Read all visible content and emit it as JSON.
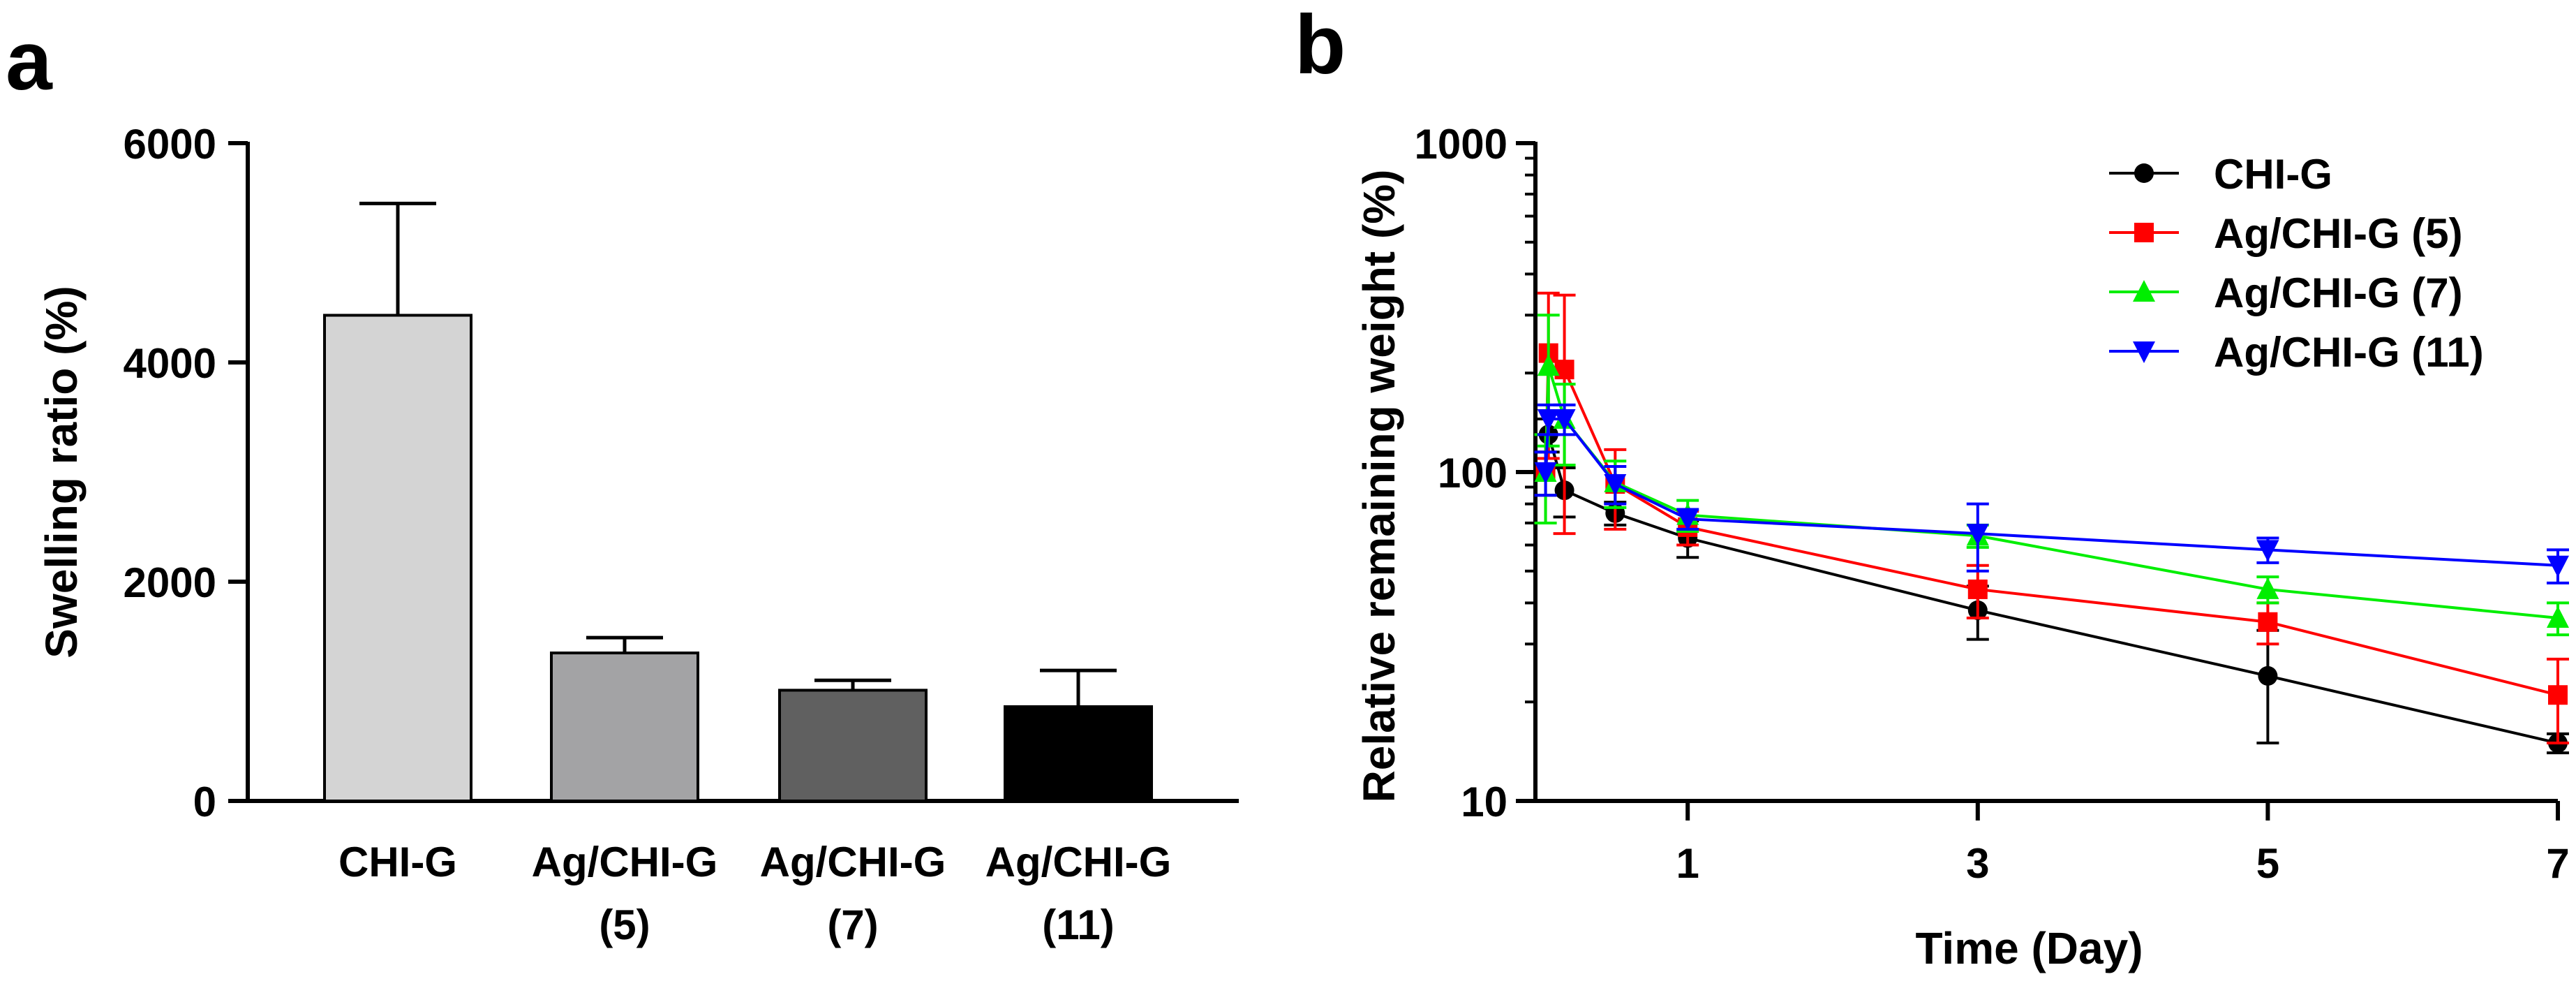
{
  "chart_data": [
    {
      "panel": "a",
      "type": "bar",
      "ylabel": "Swelling ratio (%)",
      "ylim": [
        0,
        6000
      ],
      "yticks": [
        0,
        2000,
        4000,
        6000
      ],
      "categories": [
        {
          "line1": "CHI-G",
          "line2": ""
        },
        {
          "line1": "Ag/CHI-G",
          "line2": "(5)"
        },
        {
          "line1": "Ag/CHI-G",
          "line2": "(7)"
        },
        {
          "line1": "Ag/CHI-G",
          "line2": "(11)"
        }
      ],
      "values": [
        4430,
        1350,
        1010,
        860
      ],
      "errors": [
        1020,
        140,
        90,
        330
      ],
      "colors": [
        "#d4d4d4",
        "#a3a3a5",
        "#606060",
        "#000000"
      ]
    },
    {
      "panel": "b",
      "type": "line",
      "xlabel": "Time (Day)",
      "ylabel": "Relative remaining weight (%)",
      "yscale": "log",
      "ylim": [
        10,
        1000
      ],
      "xlim": [
        -0.05,
        7
      ],
      "xticks": [
        1,
        3,
        5,
        7
      ],
      "yticks": [
        10,
        100,
        1000
      ],
      "legend_position": "top-right",
      "series": [
        {
          "name": "CHI-G",
          "color": "#000000",
          "marker": "circle",
          "x": [
            0.02,
            0.04,
            0.15,
            0.5,
            1,
            3,
            5,
            7
          ],
          "y": [
            100,
            130,
            88,
            75,
            63,
            38,
            24,
            15
          ],
          "err": [
            15,
            15,
            15,
            6,
            8,
            7,
            9,
            1
          ]
        },
        {
          "name": "Ag/CHI-G (5)",
          "color": "#ff0000",
          "marker": "square",
          "x": [
            0.02,
            0.04,
            0.15,
            0.5,
            1,
            3,
            5,
            7
          ],
          "y": [
            100,
            230,
            205,
            92,
            68,
            44,
            35,
            21
          ],
          "err": [
            30,
            120,
            140,
            25,
            8,
            8,
            5,
            6
          ]
        },
        {
          "name": "Ag/CHI-G (7)",
          "color": "#00ee00",
          "marker": "triangle-up",
          "x": [
            0.02,
            0.04,
            0.15,
            0.5,
            1,
            3,
            5,
            7
          ],
          "y": [
            100,
            210,
            145,
            93,
            74,
            64,
            44,
            36
          ],
          "err": [
            30,
            90,
            40,
            15,
            8,
            5,
            4,
            4
          ]
        },
        {
          "name": "Ag/CHI-G (11)",
          "color": "#0000ff",
          "marker": "triangle-down",
          "x": [
            0.02,
            0.04,
            0.15,
            0.5,
            1,
            3,
            5,
            7
          ],
          "y": [
            100,
            145,
            145,
            92,
            72,
            65,
            58,
            52
          ],
          "err": [
            15,
            15,
            15,
            12,
            5,
            15,
            5,
            6
          ]
        }
      ]
    }
  ],
  "panel_labels": {
    "a": "a",
    "b": "b"
  }
}
